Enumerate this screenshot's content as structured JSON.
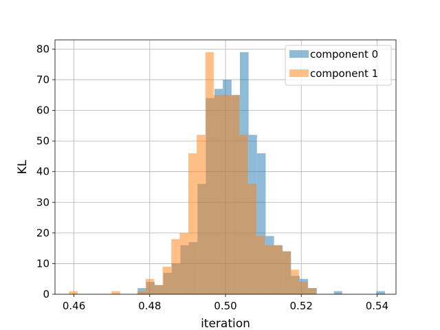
{
  "chart_data": {
    "type": "histogram",
    "xlabel": "iteration",
    "ylabel": "KL",
    "xlim": [
      0.455,
      0.545
    ],
    "ylim": [
      0,
      83
    ],
    "x_ticks": [
      "0.46",
      "0.48",
      "0.50",
      "0.52",
      "0.54"
    ],
    "y_ticks": [
      "0",
      "10",
      "20",
      "30",
      "40",
      "50",
      "60",
      "70",
      "80"
    ],
    "grid": true,
    "legend_position": "top-right",
    "series": [
      {
        "name": "component 0",
        "color": "#1f77b4",
        "opacity": 0.5,
        "bins": [
          [
            0.4768,
            0.4791,
            2
          ],
          [
            0.4791,
            0.4813,
            4
          ],
          [
            0.4813,
            0.4836,
            3
          ],
          [
            0.4836,
            0.4858,
            7
          ],
          [
            0.4858,
            0.4881,
            10
          ],
          [
            0.4881,
            0.4903,
            16
          ],
          [
            0.4903,
            0.4926,
            17
          ],
          [
            0.4926,
            0.4948,
            36
          ],
          [
            0.4948,
            0.4971,
            64
          ],
          [
            0.4971,
            0.4993,
            67
          ],
          [
            0.4993,
            0.5016,
            70
          ],
          [
            0.5016,
            0.5038,
            65
          ],
          [
            0.5038,
            0.5061,
            79
          ],
          [
            0.5061,
            0.5083,
            52
          ],
          [
            0.5083,
            0.5106,
            46
          ],
          [
            0.5106,
            0.5128,
            19
          ],
          [
            0.5128,
            0.5151,
            16
          ],
          [
            0.5151,
            0.5173,
            14
          ],
          [
            0.5173,
            0.5196,
            6
          ],
          [
            0.5196,
            0.5218,
            5
          ],
          [
            0.5218,
            0.5241,
            2
          ],
          [
            0.5286,
            0.5308,
            1
          ],
          [
            0.5398,
            0.5421,
            1
          ]
        ]
      },
      {
        "name": "component 1",
        "color": "#ff7f0e",
        "opacity": 0.5,
        "bins": [
          [
            0.4587,
            0.461,
            1
          ],
          [
            0.4699,
            0.4722,
            1
          ],
          [
            0.4767,
            0.4789,
            1
          ],
          [
            0.4789,
            0.4812,
            5
          ],
          [
            0.4812,
            0.4834,
            3
          ],
          [
            0.4834,
            0.4857,
            9
          ],
          [
            0.4857,
            0.4879,
            18
          ],
          [
            0.4879,
            0.4902,
            20
          ],
          [
            0.4902,
            0.4924,
            46
          ],
          [
            0.4924,
            0.4947,
            52
          ],
          [
            0.4947,
            0.4969,
            79
          ],
          [
            0.4969,
            0.4992,
            65
          ],
          [
            0.4992,
            0.5014,
            65
          ],
          [
            0.5014,
            0.5037,
            65
          ],
          [
            0.5037,
            0.5059,
            52
          ],
          [
            0.5059,
            0.5082,
            36
          ],
          [
            0.5082,
            0.5104,
            19
          ],
          [
            0.5104,
            0.5127,
            16
          ],
          [
            0.5127,
            0.5149,
            16
          ],
          [
            0.5149,
            0.5172,
            14
          ],
          [
            0.5172,
            0.5194,
            8
          ],
          [
            0.5194,
            0.5217,
            4
          ],
          [
            0.5217,
            0.5239,
            2
          ]
        ]
      }
    ]
  }
}
